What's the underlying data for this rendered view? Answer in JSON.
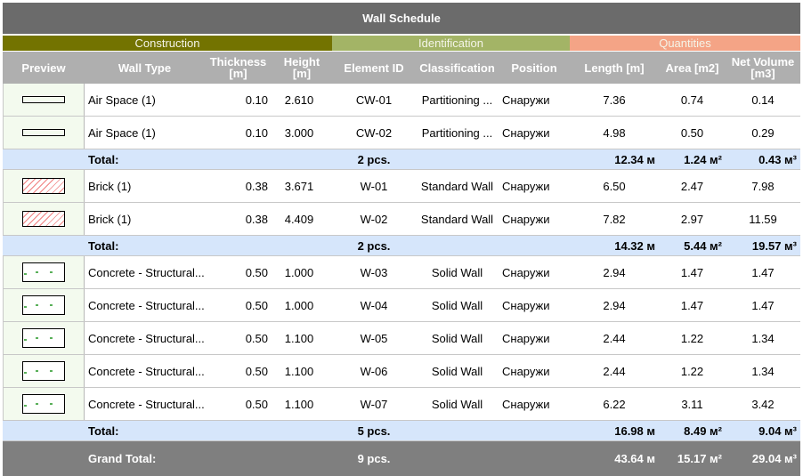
{
  "title": "Wall Schedule",
  "groups": [
    {
      "label": "Construction",
      "color": "#737300"
    },
    {
      "label": "Identification",
      "color": "#a3b466"
    },
    {
      "label": "Quantities",
      "color": "#f4a486"
    }
  ],
  "columns": [
    "Preview",
    "Wall Type",
    "Thickness [m]",
    "Height [m]",
    "Element ID",
    "Classification",
    "Position",
    "Length [m]",
    "Area [m2]",
    "Net Volume [m3]"
  ],
  "sections": [
    {
      "rows": [
        {
          "preview": "air-space",
          "type": "Air Space (1)",
          "thickness": "0.10",
          "height": "2.610",
          "id": "CW-01",
          "classification": "Partitioning ...",
          "position": "Снаружи",
          "length": "7.36",
          "area": "0.74",
          "volume": "0.14"
        },
        {
          "preview": "air-space",
          "type": "Air Space (1)",
          "thickness": "0.10",
          "height": "3.000",
          "id": "CW-02",
          "classification": "Partitioning ...",
          "position": "Снаружи",
          "length": "4.98",
          "area": "0.50",
          "volume": "0.29"
        }
      ],
      "total": {
        "label": "Total:",
        "count": "2 pcs.",
        "length": "12.34 м",
        "area": "1.24 м²",
        "volume": "0.43 м³"
      }
    },
    {
      "rows": [
        {
          "preview": "brick",
          "type": "Brick (1)",
          "thickness": "0.38",
          "height": "3.671",
          "id": "W-01",
          "classification": "Standard Wall",
          "position": "Снаружи",
          "length": "6.50",
          "area": "2.47",
          "volume": "7.98"
        },
        {
          "preview": "brick",
          "type": "Brick (1)",
          "thickness": "0.38",
          "height": "4.409",
          "id": "W-02",
          "classification": "Standard Wall",
          "position": "Снаружи",
          "length": "7.82",
          "area": "2.97",
          "volume": "11.59"
        }
      ],
      "total": {
        "label": "Total:",
        "count": "2 pcs.",
        "length": "14.32 м",
        "area": "5.44 м²",
        "volume": "19.57 м³"
      }
    },
    {
      "rows": [
        {
          "preview": "concrete",
          "type": "Concrete - Structural...",
          "thickness": "0.50",
          "height": "1.000",
          "id": "W-03",
          "classification": "Solid Wall",
          "position": "Снаружи",
          "length": "2.94",
          "area": "1.47",
          "volume": "1.47"
        },
        {
          "preview": "concrete",
          "type": "Concrete - Structural...",
          "thickness": "0.50",
          "height": "1.000",
          "id": "W-04",
          "classification": "Solid Wall",
          "position": "Снаружи",
          "length": "2.94",
          "area": "1.47",
          "volume": "1.47"
        },
        {
          "preview": "concrete",
          "type": "Concrete - Structural...",
          "thickness": "0.50",
          "height": "1.100",
          "id": "W-05",
          "classification": "Solid Wall",
          "position": "Снаружи",
          "length": "2.44",
          "area": "1.22",
          "volume": "1.34"
        },
        {
          "preview": "concrete",
          "type": "Concrete - Structural...",
          "thickness": "0.50",
          "height": "1.100",
          "id": "W-06",
          "classification": "Solid Wall",
          "position": "Снаружи",
          "length": "2.44",
          "area": "1.22",
          "volume": "1.34"
        },
        {
          "preview": "concrete",
          "type": "Concrete - Structural...",
          "thickness": "0.50",
          "height": "1.100",
          "id": "W-07",
          "classification": "Solid Wall",
          "position": "Снаружи",
          "length": "6.22",
          "area": "3.11",
          "volume": "3.42"
        }
      ],
      "total": {
        "label": "Total:",
        "count": "5 pcs.",
        "length": "16.98 м",
        "area": "8.49 м²",
        "volume": "9.04 м³"
      }
    }
  ],
  "grand_total": {
    "label": "Grand Total:",
    "count": "9 pcs.",
    "length": "43.64 м",
    "area": "15.17 м²",
    "volume": "29.04 м³"
  }
}
